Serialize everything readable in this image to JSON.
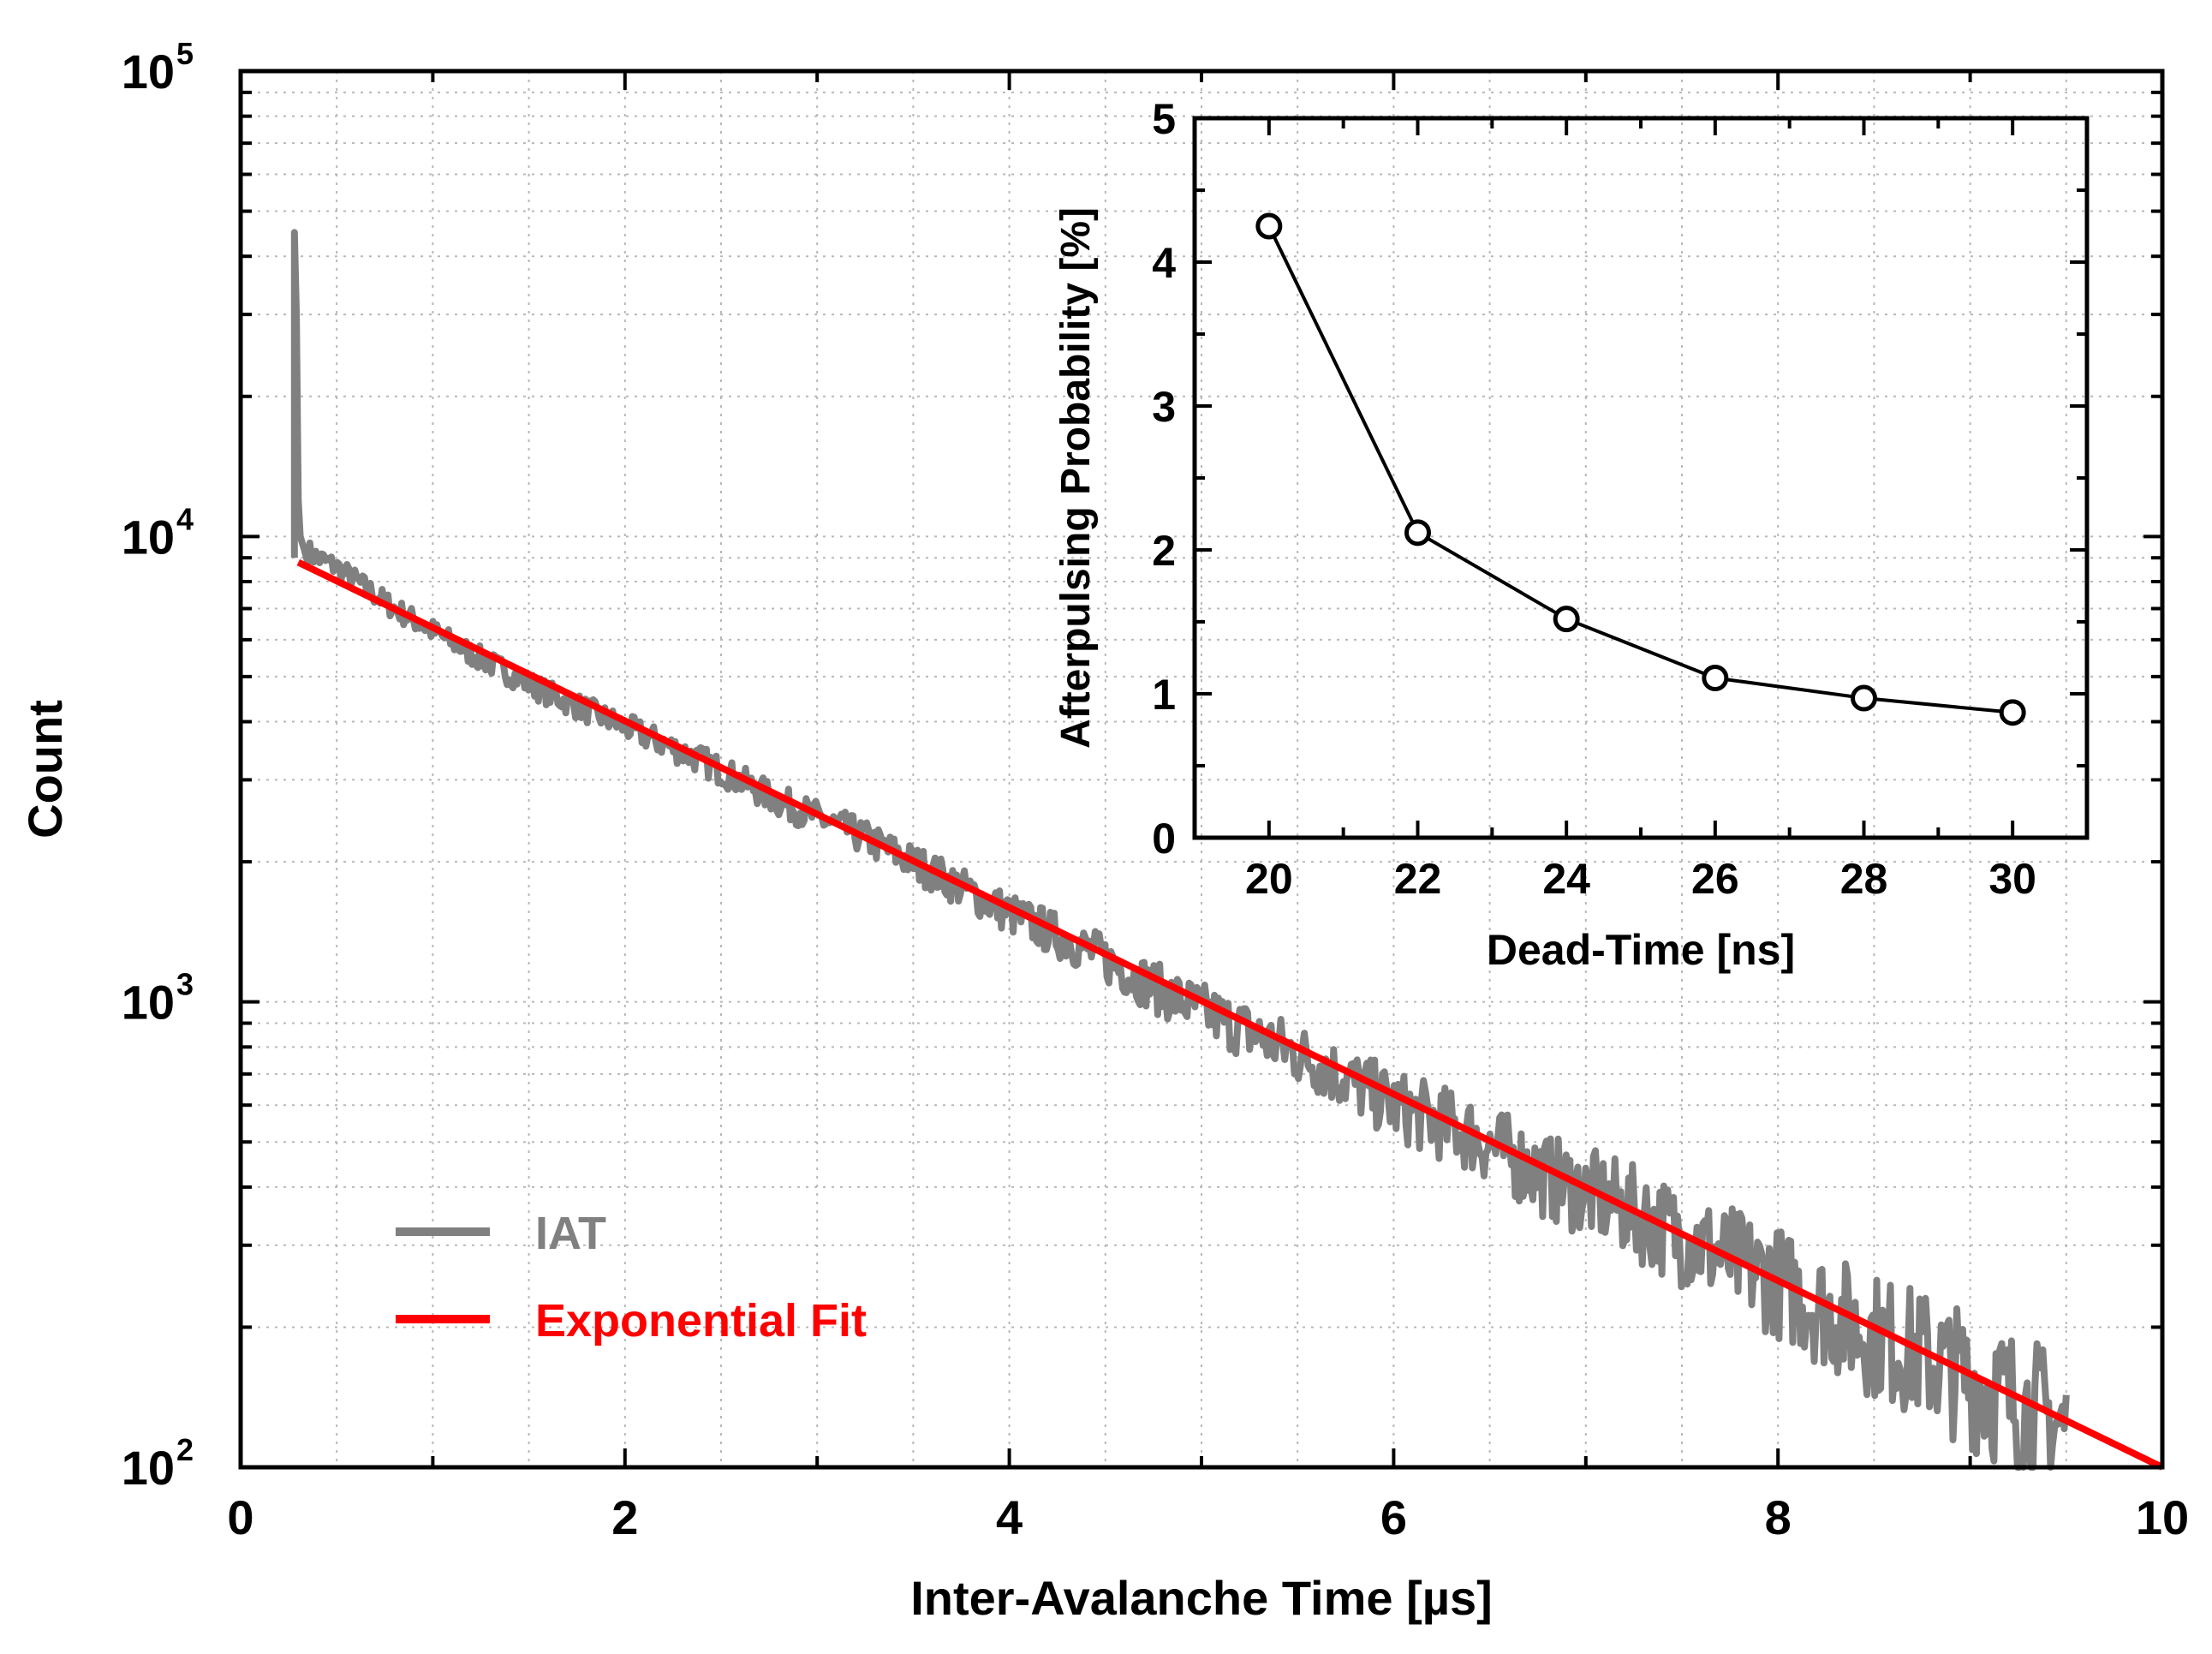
{
  "chart_data": [
    {
      "type": "line",
      "scale": "log-y",
      "xlabel": "Inter-Avalanche Time [µs]",
      "ylabel": "Count",
      "xlim": [
        0,
        10
      ],
      "ylim": [
        100,
        100000
      ],
      "x_ticks": [
        "0",
        "2",
        "4",
        "6",
        "8",
        "10"
      ],
      "x_tick_values": [
        0,
        2,
        4,
        6,
        8,
        10
      ],
      "y_ticks": [
        {
          "base": "10",
          "exp": "2",
          "value": 100
        },
        {
          "base": "10",
          "exp": "3",
          "value": 1000
        },
        {
          "base": "10",
          "exp": "4",
          "value": 10000
        },
        {
          "base": "10",
          "exp": "5",
          "value": 100000
        }
      ],
      "grid": true,
      "legend_position": "bottom-left",
      "series": [
        {
          "name": "IAT",
          "color": "#808080",
          "description": "noisy histogram of inter-avalanche times with a sharp afterpulsing peak near 0.3 µs",
          "x": [
            0.28,
            0.28,
            0.29,
            0.3,
            0.31,
            0.33,
            0.4,
            0.5,
            0.8,
            1.2,
            1.6,
            2.0,
            2.4,
            2.8,
            3.2,
            3.6,
            4.0,
            4.4,
            4.8,
            5.2,
            5.6,
            6.0,
            6.4,
            6.8,
            7.2,
            7.6,
            8.0,
            8.4,
            8.8,
            9.2,
            9.5
          ],
          "y": [
            9000,
            45000,
            30000,
            12000,
            10000,
            9400,
            9000,
            8600,
            7000,
            5600,
            4600,
            3900,
            3300,
            2700,
            2300,
            1900,
            1550,
            1300,
            1050,
            880,
            740,
            600,
            520,
            420,
            360,
            300,
            250,
            200,
            170,
            140,
            120
          ]
        },
        {
          "name": "Exponential Fit",
          "color": "#ff0000",
          "x": [
            0.3,
            10
          ],
          "y": [
            8800,
            100
          ]
        }
      ]
    },
    {
      "type": "line",
      "title": "",
      "xlabel": "Dead-Time [ns]",
      "ylabel": "Afterpulsing Probability [%]",
      "xlim": [
        19,
        31
      ],
      "ylim": [
        0,
        5
      ],
      "x_ticks": [
        "20",
        "22",
        "24",
        "26",
        "28",
        "30"
      ],
      "x_tick_values": [
        20,
        22,
        24,
        26,
        28,
        30
      ],
      "y_ticks": [
        "0",
        "1",
        "2",
        "3",
        "4",
        "5"
      ],
      "y_tick_values": [
        0,
        1,
        2,
        3,
        4,
        5
      ],
      "grid": false,
      "series": [
        {
          "name": "Afterpulsing Probability",
          "color": "#000000",
          "marker": "open-circle",
          "x": [
            20,
            22,
            24,
            26,
            28,
            30
          ],
          "y": [
            4.25,
            2.12,
            1.52,
            1.11,
            0.97,
            0.87
          ]
        }
      ]
    }
  ],
  "legend": {
    "iat_label": "IAT",
    "fit_label": "Exponential Fit"
  }
}
